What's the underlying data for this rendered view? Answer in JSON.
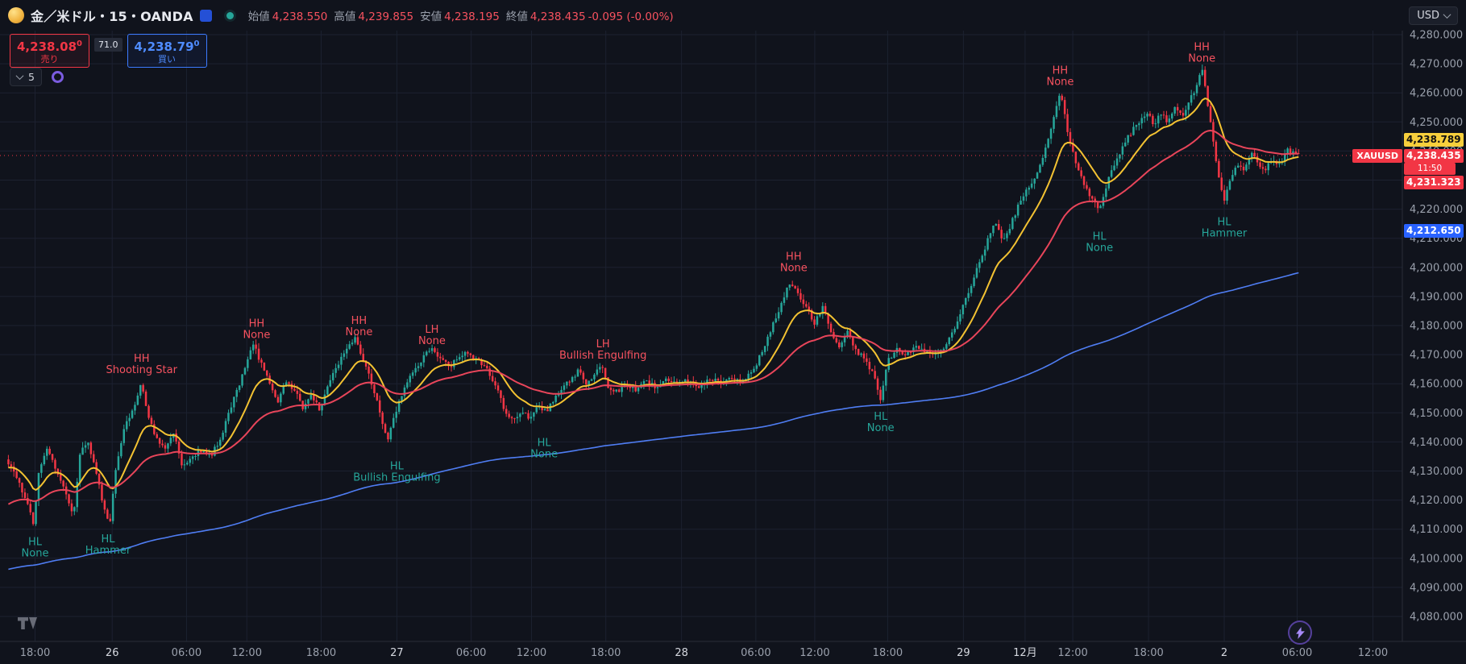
{
  "header": {
    "symbol_title": "金／米ドル・15・OANDA",
    "ohlc": {
      "open_label": "始値",
      "open": "4,238.550",
      "high_label": "高値",
      "high": "4,239.855",
      "low_label": "安値",
      "low": "4,238.195",
      "close_label": "終値",
      "close": "4,238.435",
      "change": "-0.095 (-0.00%)"
    },
    "currency_button": "USD"
  },
  "trade_panel": {
    "sell_price_main": "4,238.08",
    "sell_price_sup": "0",
    "sell_label": "売り",
    "spread": "71.0",
    "buy_price_main": "4,238.79",
    "buy_price_sup": "0",
    "buy_label": "買い",
    "indicator_count": "5"
  },
  "price_axis": {
    "tags": {
      "ma_fast": {
        "value": "4,238.789",
        "price": 4238.789
      },
      "last": {
        "symbol": "XAUUSD",
        "value": "4,238.435",
        "price": 4238.435,
        "countdown": "11:50"
      },
      "ma_mid": {
        "value": "4,231.323",
        "price": 4231.323
      },
      "ma_slow": {
        "value": "4,212.650",
        "price": 4212.65
      }
    }
  },
  "colors": {
    "bg": "#10131c",
    "grid": "#1c2130",
    "axis_border": "#2a2e39",
    "axis_text": "#9aa0ac",
    "axis_text_major": "#d6d9e0",
    "candle_up": "#26a69a",
    "candle_down": "#f23645",
    "ann_teal": "#26a69a",
    "ann_red": "#f7525f",
    "last_line": "#f23645",
    "tag_fast_bg": "#f8cf3c",
    "tag_last_bg": "#f23645",
    "tag_slow_bg": "#2962ff"
  },
  "chart_data": {
    "type": "candlestick",
    "title": "金／米ドル 15 OANDA",
    "symbol": "XAUUSD",
    "timeframe_minutes": 15,
    "y_min": 4080,
    "y_max": 4280,
    "y_step": 10,
    "last_price": 4238.435,
    "candle_count": 470,
    "path": [
      [
        0.005,
        4134
      ],
      [
        0.012,
        4127
      ],
      [
        0.019,
        4120
      ],
      [
        0.024,
        4112
      ],
      [
        0.028,
        4131
      ],
      [
        0.033,
        4138
      ],
      [
        0.04,
        4131
      ],
      [
        0.047,
        4122
      ],
      [
        0.052,
        4114
      ],
      [
        0.057,
        4135
      ],
      [
        0.062,
        4141
      ],
      [
        0.068,
        4130
      ],
      [
        0.073,
        4120
      ],
      [
        0.078,
        4111
      ],
      [
        0.083,
        4133
      ],
      [
        0.089,
        4145
      ],
      [
        0.095,
        4152
      ],
      [
        0.101,
        4160
      ],
      [
        0.106,
        4148
      ],
      [
        0.112,
        4141
      ],
      [
        0.118,
        4138
      ],
      [
        0.124,
        4144
      ],
      [
        0.13,
        4131
      ],
      [
        0.136,
        4134
      ],
      [
        0.143,
        4137
      ],
      [
        0.15,
        4135
      ],
      [
        0.157,
        4141
      ],
      [
        0.163,
        4150
      ],
      [
        0.17,
        4159
      ],
      [
        0.176,
        4168
      ],
      [
        0.181,
        4174
      ],
      [
        0.186,
        4167
      ],
      [
        0.192,
        4160
      ],
      [
        0.198,
        4153
      ],
      [
        0.204,
        4161
      ],
      [
        0.21,
        4158
      ],
      [
        0.216,
        4152
      ],
      [
        0.222,
        4156
      ],
      [
        0.228,
        4151
      ],
      [
        0.234,
        4160
      ],
      [
        0.24,
        4166
      ],
      [
        0.247,
        4171
      ],
      [
        0.253,
        4176
      ],
      [
        0.258,
        4170
      ],
      [
        0.263,
        4164
      ],
      [
        0.268,
        4155
      ],
      [
        0.273,
        4146
      ],
      [
        0.277,
        4141
      ],
      [
        0.283,
        4152
      ],
      [
        0.29,
        4160
      ],
      [
        0.297,
        4166
      ],
      [
        0.303,
        4170
      ],
      [
        0.309,
        4172
      ],
      [
        0.315,
        4168
      ],
      [
        0.321,
        4166
      ],
      [
        0.327,
        4169
      ],
      [
        0.333,
        4171
      ],
      [
        0.34,
        4168
      ],
      [
        0.348,
        4164
      ],
      [
        0.355,
        4158
      ],
      [
        0.36,
        4150
      ],
      [
        0.366,
        4147
      ],
      [
        0.372,
        4151
      ],
      [
        0.378,
        4148
      ],
      [
        0.384,
        4153
      ],
      [
        0.39,
        4150
      ],
      [
        0.396,
        4156
      ],
      [
        0.402,
        4159
      ],
      [
        0.408,
        4162
      ],
      [
        0.413,
        4165
      ],
      [
        0.418,
        4160
      ],
      [
        0.424,
        4163
      ],
      [
        0.429,
        4167
      ],
      [
        0.433,
        4159
      ],
      [
        0.44,
        4157
      ],
      [
        0.447,
        4160
      ],
      [
        0.454,
        4158
      ],
      [
        0.461,
        4161
      ],
      [
        0.468,
        4159
      ],
      [
        0.475,
        4162
      ],
      [
        0.482,
        4160
      ],
      [
        0.49,
        4161
      ],
      [
        0.498,
        4159
      ],
      [
        0.506,
        4162
      ],
      [
        0.514,
        4160
      ],
      [
        0.522,
        4162
      ],
      [
        0.53,
        4161
      ],
      [
        0.537,
        4165
      ],
      [
        0.544,
        4171
      ],
      [
        0.551,
        4180
      ],
      [
        0.558,
        4189
      ],
      [
        0.563,
        4195
      ],
      [
        0.569,
        4191
      ],
      [
        0.575,
        4186
      ],
      [
        0.581,
        4181
      ],
      [
        0.587,
        4187
      ],
      [
        0.592,
        4179
      ],
      [
        0.598,
        4173
      ],
      [
        0.604,
        4178
      ],
      [
        0.61,
        4172
      ],
      [
        0.617,
        4168
      ],
      [
        0.623,
        4163
      ],
      [
        0.628,
        4155
      ],
      [
        0.633,
        4168
      ],
      [
        0.639,
        4172
      ],
      [
        0.646,
        4170
      ],
      [
        0.653,
        4173
      ],
      [
        0.66,
        4171
      ],
      [
        0.667,
        4170
      ],
      [
        0.674,
        4173
      ],
      [
        0.68,
        4178
      ],
      [
        0.686,
        4186
      ],
      [
        0.692,
        4193
      ],
      [
        0.698,
        4201
      ],
      [
        0.704,
        4209
      ],
      [
        0.71,
        4216
      ],
      [
        0.715,
        4209
      ],
      [
        0.72,
        4214
      ],
      [
        0.726,
        4221
      ],
      [
        0.732,
        4226
      ],
      [
        0.738,
        4231
      ],
      [
        0.744,
        4238
      ],
      [
        0.749,
        4246
      ],
      [
        0.753,
        4254
      ],
      [
        0.756,
        4261
      ],
      [
        0.76,
        4250
      ],
      [
        0.764,
        4241
      ],
      [
        0.769,
        4233
      ],
      [
        0.774,
        4228
      ],
      [
        0.779,
        4223
      ],
      [
        0.784,
        4220
      ],
      [
        0.789,
        4228
      ],
      [
        0.794,
        4235
      ],
      [
        0.8,
        4241
      ],
      [
        0.806,
        4246
      ],
      [
        0.812,
        4250
      ],
      [
        0.818,
        4253
      ],
      [
        0.823,
        4249
      ],
      [
        0.828,
        4253
      ],
      [
        0.833,
        4250
      ],
      [
        0.838,
        4255
      ],
      [
        0.843,
        4252
      ],
      [
        0.848,
        4257
      ],
      [
        0.853,
        4262
      ],
      [
        0.857,
        4269
      ],
      [
        0.861,
        4257
      ],
      [
        0.865,
        4244
      ],
      [
        0.869,
        4231
      ],
      [
        0.873,
        4223
      ],
      [
        0.877,
        4230
      ],
      [
        0.882,
        4236
      ],
      [
        0.887,
        4234
      ],
      [
        0.892,
        4239
      ],
      [
        0.897,
        4236
      ],
      [
        0.902,
        4233
      ],
      [
        0.907,
        4237
      ],
      [
        0.912,
        4235
      ],
      [
        0.917,
        4240
      ],
      [
        0.922,
        4240
      ],
      [
        0.927,
        4238.4
      ]
    ],
    "mas": [
      {
        "name": "ma-fast",
        "color": "#f3c232",
        "alpha": 0.12,
        "init": 4131,
        "width": 2
      },
      {
        "name": "ma-mid",
        "color": "#e8455a",
        "alpha": 0.04,
        "init": 4118,
        "width": 2
      },
      {
        "name": "ma-slow",
        "color": "#4f7df3",
        "alpha": 0.006,
        "init": 4096,
        "width": 1.6
      }
    ],
    "time_ticks": [
      {
        "f": 0.025,
        "label": "18:00",
        "major": false
      },
      {
        "f": 0.08,
        "label": "26",
        "major": true
      },
      {
        "f": 0.133,
        "label": "06:00",
        "major": false
      },
      {
        "f": 0.176,
        "label": "12:00",
        "major": false
      },
      {
        "f": 0.229,
        "label": "18:00",
        "major": false
      },
      {
        "f": 0.283,
        "label": "27",
        "major": true
      },
      {
        "f": 0.336,
        "label": "06:00",
        "major": false
      },
      {
        "f": 0.379,
        "label": "12:00",
        "major": false
      },
      {
        "f": 0.432,
        "label": "18:00",
        "major": false
      },
      {
        "f": 0.486,
        "label": "28",
        "major": true
      },
      {
        "f": 0.539,
        "label": "06:00",
        "major": false
      },
      {
        "f": 0.581,
        "label": "12:00",
        "major": false
      },
      {
        "f": 0.633,
        "label": "18:00",
        "major": false
      },
      {
        "f": 0.687,
        "label": "29",
        "major": true
      },
      {
        "f": 0.731,
        "label": "12月",
        "major": true
      },
      {
        "f": 0.765,
        "label": "12:00",
        "major": false
      },
      {
        "f": 0.819,
        "label": "18:00",
        "major": false
      },
      {
        "f": 0.873,
        "label": "2",
        "major": true
      },
      {
        "f": 0.925,
        "label": "06:00",
        "major": false
      },
      {
        "f": 0.979,
        "label": "12:00",
        "major": false
      }
    ],
    "annotations": [
      {
        "f": 0.025,
        "price": 4104,
        "line1": "HL",
        "line2": "None",
        "tone": "teal"
      },
      {
        "f": 0.077,
        "price": 4105,
        "line1": "HL",
        "line2": "Hammer",
        "tone": "teal"
      },
      {
        "f": 0.101,
        "price": 4167,
        "line1": "HH",
        "line2": "Shooting Star",
        "tone": "red"
      },
      {
        "f": 0.183,
        "price": 4179,
        "line1": "HH",
        "line2": "None",
        "tone": "red"
      },
      {
        "f": 0.256,
        "price": 4180,
        "line1": "HH",
        "line2": "None",
        "tone": "red"
      },
      {
        "f": 0.283,
        "price": 4130,
        "line1": "HL",
        "line2": "Bullish Engulfing",
        "tone": "teal"
      },
      {
        "f": 0.308,
        "price": 4177,
        "line1": "LH",
        "line2": "None",
        "tone": "red"
      },
      {
        "f": 0.388,
        "price": 4138,
        "line1": "HL",
        "line2": "None",
        "tone": "teal"
      },
      {
        "f": 0.43,
        "price": 4172,
        "line1": "LH",
        "line2": "Bullish Engulfing",
        "tone": "red"
      },
      {
        "f": 0.566,
        "price": 4202,
        "line1": "HH",
        "line2": "None",
        "tone": "red"
      },
      {
        "f": 0.628,
        "price": 4147,
        "line1": "HL",
        "line2": "None",
        "tone": "teal"
      },
      {
        "f": 0.756,
        "price": 4266,
        "line1": "HH",
        "line2": "None",
        "tone": "red"
      },
      {
        "f": 0.784,
        "price": 4209,
        "line1": "HL",
        "line2": "None",
        "tone": "teal"
      },
      {
        "f": 0.857,
        "price": 4274,
        "line1": "HH",
        "line2": "None",
        "tone": "red"
      },
      {
        "f": 0.873,
        "price": 4214,
        "line1": "HL",
        "line2": "Hammer",
        "tone": "teal"
      }
    ]
  }
}
